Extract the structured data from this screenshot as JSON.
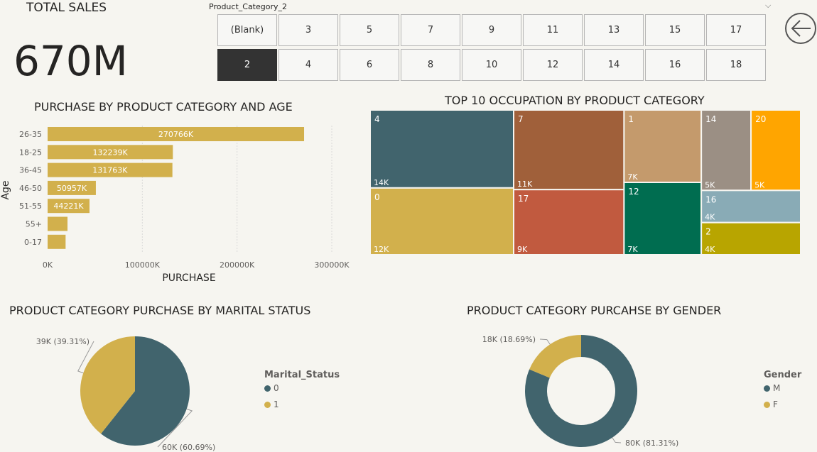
{
  "kpi": {
    "title": "TOTAL SALES",
    "value": "670M"
  },
  "slicer": {
    "label": "Product_Category_2",
    "row1": [
      "(Blank)",
      "3",
      "5",
      "7",
      "9",
      "11",
      "13",
      "15",
      "17"
    ],
    "row2": [
      "2",
      "4",
      "6",
      "8",
      "10",
      "12",
      "14",
      "16",
      "18"
    ],
    "selected": "2"
  },
  "colors": {
    "gold": "#d2b04c",
    "teal": "#41646d",
    "rust": "#a0603a",
    "tan": "#c49a6c",
    "gray": "#9b8f84",
    "orange": "#ffa500",
    "red": "#c15a3f",
    "green": "#006d50",
    "lightblue": "#89abb6",
    "olive": "#b8a500"
  },
  "chart_data": [
    {
      "type": "bar",
      "orientation": "horizontal",
      "title": "PURCHASE BY PRODUCT CATEGORY AND AGE",
      "xlabel": "PURCHASE",
      "ylabel": "Age",
      "categories": [
        "26-35",
        "18-25",
        "36-45",
        "46-50",
        "51-55",
        "55+",
        "0-17"
      ],
      "values": [
        270766,
        132239,
        131763,
        50957,
        44221,
        21000,
        19000
      ],
      "data_labels": [
        "270766K",
        "132239K",
        "131763K",
        "50957K",
        "44221K",
        "",
        ""
      ],
      "x_ticks": [
        "0K",
        "100000K",
        "200000K",
        "300000K"
      ],
      "xlim": [
        0,
        300000
      ],
      "gridlines": true,
      "color": "#d2b04c"
    },
    {
      "type": "treemap",
      "title": "TOP 10 OCCUPATION BY PRODUCT CATEGORY",
      "items": [
        {
          "name": "4",
          "label": "14K",
          "value": 14,
          "color": "#41646d"
        },
        {
          "name": "0",
          "label": "12K",
          "value": 12,
          "color": "#d2b04c"
        },
        {
          "name": "7",
          "label": "11K",
          "value": 11,
          "color": "#a0603a"
        },
        {
          "name": "17",
          "label": "9K",
          "value": 9,
          "color": "#c15a3f"
        },
        {
          "name": "1",
          "label": "7K",
          "value": 7,
          "color": "#c49a6c"
        },
        {
          "name": "12",
          "label": "7K",
          "value": 7,
          "color": "#006d50"
        },
        {
          "name": "14",
          "label": "5K",
          "value": 5,
          "color": "#9b8f84"
        },
        {
          "name": "20",
          "label": "5K",
          "value": 5,
          "color": "#ffa500"
        },
        {
          "name": "16",
          "label": "4K",
          "value": 4,
          "color": "#89abb6"
        },
        {
          "name": "2",
          "label": "4K",
          "value": 4,
          "color": "#b8a500"
        }
      ]
    },
    {
      "type": "pie",
      "title": "PRODUCT CATEGORY PURCHASE BY MARITAL STATUS",
      "legend_title": "Marital_Status",
      "legend_position": "right",
      "slices": [
        {
          "name": "0",
          "value": 60.69,
          "label": "60K (60.69%)",
          "color": "#41646d"
        },
        {
          "name": "1",
          "value": 39.31,
          "label": "39K (39.31%)",
          "color": "#d2b04c"
        }
      ]
    },
    {
      "type": "donut",
      "title": "PRODUCT CATEGORY PURCAHSE BY GENDER",
      "legend_title": "Gender",
      "legend_position": "right",
      "slices": [
        {
          "name": "M",
          "value": 81.31,
          "label": "80K (81.31%)",
          "color": "#41646d"
        },
        {
          "name": "F",
          "value": 18.69,
          "label": "18K (18.69%)",
          "color": "#d2b04c"
        }
      ]
    }
  ]
}
